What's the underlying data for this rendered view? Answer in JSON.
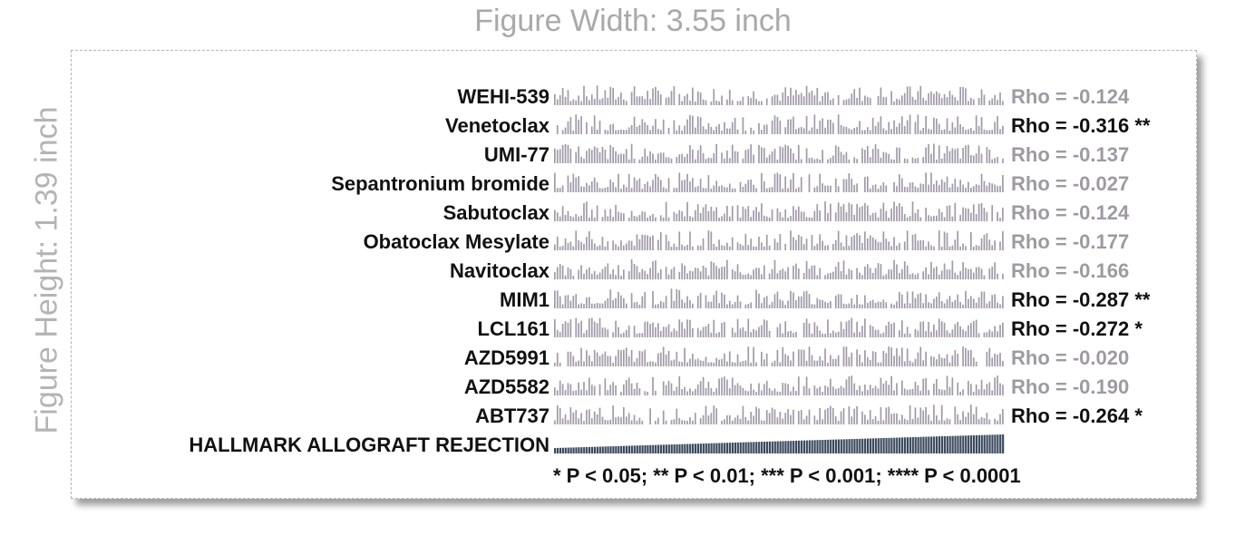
{
  "figure": {
    "width_label": "Figure Width: 3.55 inch",
    "height_label": "Figure Height: 1.39 inch",
    "footnote": "* P < 0.05; ** P < 0.01; *** P < 0.001; **** P < 0.0001"
  },
  "colors": {
    "bar_gray": "#a19aa8",
    "heat_navy": "#3b4a5e",
    "label_black": "#111111",
    "nonsig_gray": "#9d9aa2"
  },
  "chart_data": {
    "type": "heatmap",
    "rows": [
      {
        "drug": "WEHI-539",
        "rho": "Rho = -0.124",
        "significance": "",
        "significant": false
      },
      {
        "drug": "Venetoclax",
        "rho": "Rho = -0.316",
        "significance": "**",
        "significant": true
      },
      {
        "drug": "UMI-77",
        "rho": "Rho = -0.137",
        "significance": "",
        "significant": false
      },
      {
        "drug": "Sepantronium bromide",
        "rho": "Rho = -0.027",
        "significance": "",
        "significant": false
      },
      {
        "drug": "Sabutoclax",
        "rho": "Rho = -0.124",
        "significance": "",
        "significant": false
      },
      {
        "drug": "Obatoclax Mesylate",
        "rho": "Rho = -0.177",
        "significance": "",
        "significant": false
      },
      {
        "drug": "Navitoclax",
        "rho": "Rho = -0.166",
        "significance": "",
        "significant": false
      },
      {
        "drug": "MIM1",
        "rho": "Rho = -0.287",
        "significance": "**",
        "significant": true
      },
      {
        "drug": "LCL161",
        "rho": "Rho = -0.272",
        "significance": "*",
        "significant": true
      },
      {
        "drug": "AZD5991",
        "rho": "Rho = -0.020",
        "significance": "",
        "significant": false
      },
      {
        "drug": "AZD5582",
        "rho": "Rho = -0.190",
        "significance": "",
        "significant": false
      },
      {
        "drug": "ABT737",
        "rho": "Rho = -0.264",
        "significance": "*",
        "significant": true
      }
    ],
    "score_row": {
      "label": "HALLMARK ALLOGRAFT REJECTION",
      "trend": "increasing"
    },
    "samples_per_row": 170
  }
}
